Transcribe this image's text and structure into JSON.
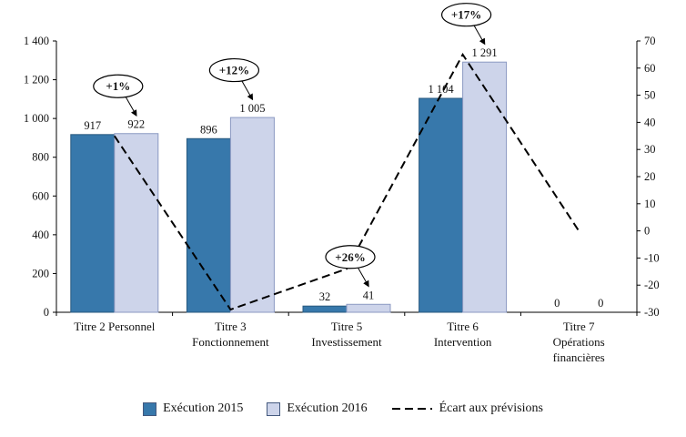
{
  "chart_data": {
    "type": "bar",
    "title": "",
    "grid": false,
    "legend_position": "bottom",
    "categories": [
      "Titre 2 Personnel",
      "Titre 3\nFonctionnement",
      "Titre 5\nInvestissement",
      "Titre 6\nIntervention",
      "Titre 7\nOpérations\nfinancières"
    ],
    "series": [
      {
        "name": "Exécution 2015",
        "type": "bar",
        "axis": "left",
        "color": "#3778ab",
        "border": "#28597f",
        "values": [
          917,
          896,
          32,
          1104,
          0
        ],
        "labels": [
          "917",
          "896",
          "32",
          "1 104",
          "0"
        ]
      },
      {
        "name": "Exécution 2016",
        "type": "bar",
        "axis": "left",
        "color": "#cdd4ea",
        "border": "#8b99c2",
        "values": [
          922,
          1005,
          41,
          1291,
          0
        ],
        "labels": [
          "922",
          "1 005",
          "41",
          "1 291",
          "0"
        ]
      },
      {
        "name": "Écart aux prévisions",
        "type": "line",
        "axis": "right",
        "color": "#000000",
        "dashed": true,
        "values": [
          35,
          -29,
          -14,
          65,
          0
        ]
      }
    ],
    "annotations": [
      {
        "label": "+1%",
        "category_index": 0
      },
      {
        "label": "+12%",
        "category_index": 1
      },
      {
        "label": "+26%",
        "category_index": 2
      },
      {
        "label": "+17%",
        "category_index": 3
      }
    ],
    "left_axis": {
      "min": 0,
      "max": 1400,
      "step": 200,
      "ticks": [
        "0",
        "200",
        "400",
        "600",
        "800",
        "1 000",
        "1 200",
        "1 400"
      ]
    },
    "right_axis": {
      "min": -30,
      "max": 70,
      "step": 10,
      "ticks": [
        "-30",
        "-20",
        "-10",
        "0",
        "10",
        "20",
        "30",
        "40",
        "50",
        "60",
        "70"
      ]
    },
    "legend": [
      "Exécution 2015",
      "Exécution 2016",
      "Écart aux prévisions"
    ]
  }
}
